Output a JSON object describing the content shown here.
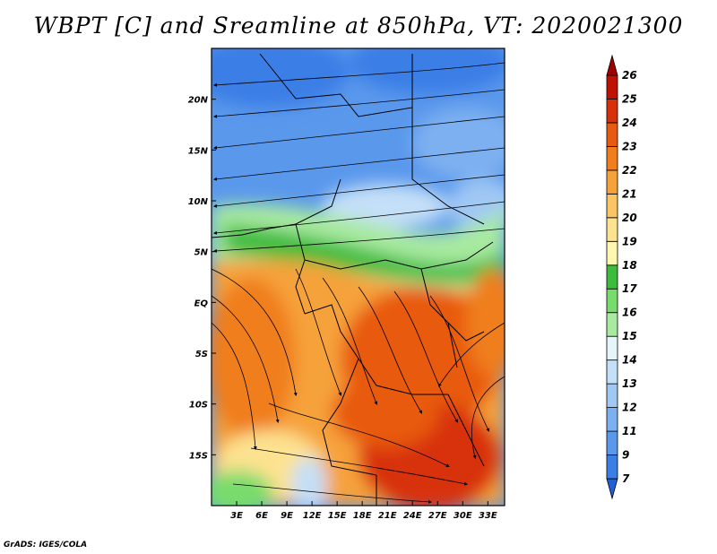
{
  "title": "WBPT [C] and Sreamline at 850hPa, VT: 2020021300",
  "credit": "GrADS: IGES/COLA",
  "map": {
    "lat_labels": [
      "20N",
      "15N",
      "10N",
      "5N",
      "EQ",
      "5S",
      "10S",
      "15S"
    ],
    "lat_values": [
      20,
      15,
      10,
      5,
      0,
      -5,
      -10,
      -15
    ],
    "lon_labels": [
      "3E",
      "6E",
      "9E",
      "12E",
      "15E",
      "18E",
      "21E",
      "24E",
      "27E",
      "30E",
      "33E"
    ],
    "lon_values": [
      3,
      6,
      9,
      12,
      15,
      18,
      21,
      24,
      27,
      30,
      33
    ],
    "lat_range": [
      -20,
      25
    ],
    "lon_range": [
      0,
      35
    ]
  },
  "colorbar": {
    "labels": [
      "7",
      "9",
      "11",
      "12",
      "13",
      "14",
      "15",
      "16",
      "17",
      "18",
      "19",
      "20",
      "21",
      "22",
      "23",
      "24",
      "25",
      "26"
    ],
    "colors": [
      "#1f60d8",
      "#3a7ee6",
      "#5a98ec",
      "#7db0f0",
      "#a0c8f4",
      "#c4dff8",
      "#e6f5fa",
      "#a8eaa0",
      "#78dc6c",
      "#3cbc3c",
      "#fff6b0",
      "#fde290",
      "#fbc464",
      "#f6a23a",
      "#f07e1c",
      "#e85a10",
      "#d83008",
      "#c01000",
      "#a00000"
    ]
  }
}
